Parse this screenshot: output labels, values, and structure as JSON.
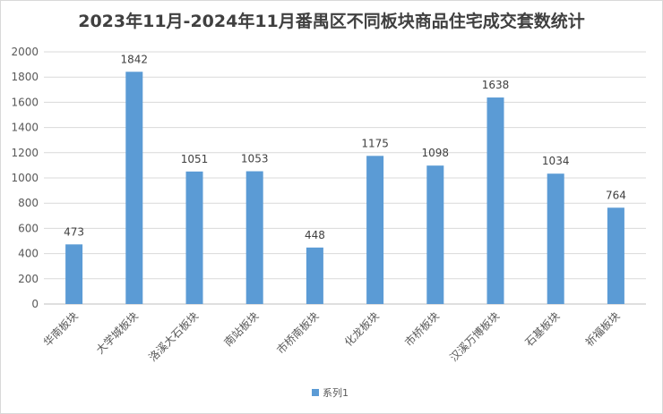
{
  "chart_data": {
    "type": "bar",
    "title": "2023年11月-2024年11月番禺区不同板块商品住宅成交套数统计",
    "categories": [
      "华南板块",
      "大学城板块",
      "洛溪大石板块",
      "南站板块",
      "市桥南板块",
      "化龙板块",
      "市桥板块",
      "汉溪万博板块",
      "石基板块",
      "祈福板块"
    ],
    "series": [
      {
        "name": "系列1",
        "values": [
          473,
          1842,
          1051,
          1053,
          448,
          1175,
          1098,
          1638,
          1034,
          764
        ]
      }
    ],
    "yticks": [
      "0",
      "200",
      "400",
      "600",
      "800",
      "1000",
      "1200",
      "1400",
      "1600",
      "1800",
      "2000"
    ],
    "ylim": [
      0,
      2000
    ],
    "xlabel": "",
    "ylabel": "",
    "grid": true,
    "legend_position": "bottom",
    "colors": {
      "bar": "#5b9bd5",
      "grid": "#d9d9d9",
      "axis": "#bfbfbf"
    }
  }
}
